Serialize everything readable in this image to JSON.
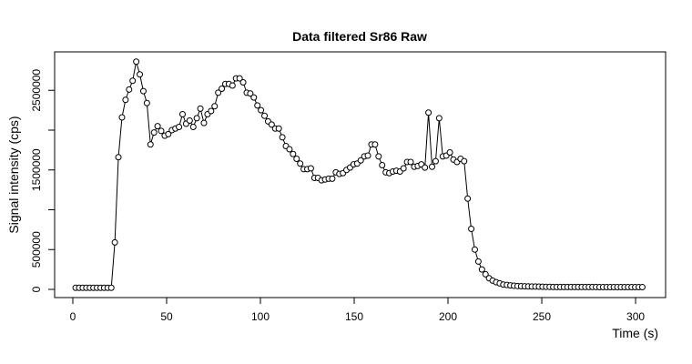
{
  "chart_data": {
    "type": "scatter-line",
    "title": "Data filtered Sr86 Raw",
    "xlabel": "Time (s)",
    "ylabel": "Signal intensity (cps)",
    "xlim": [
      -9.7,
      316
    ],
    "ylim": [
      -103000,
      2983000
    ],
    "xticks": [
      0,
      50,
      100,
      150,
      200,
      250,
      300
    ],
    "yticks": [
      0,
      500000,
      {
        "value": 1000000,
        "label": null
      },
      1500000,
      {
        "value": 2000000,
        "label": null
      },
      2500000
    ],
    "color": "#000000",
    "x": [
      1.5,
      3.4,
      5.3,
      7.2,
      9.1,
      11,
      12.9,
      14.8,
      16.7,
      18.6,
      20.5,
      22.4,
      24.3,
      26.2,
      28.1,
      30,
      31.9,
      33.8,
      35.7,
      37.6,
      39.5,
      41.4,
      43.3,
      45.2,
      47.1,
      49,
      50.9,
      52.8,
      54.7,
      56.6,
      58.5,
      60.4,
      62.3,
      64.2,
      66.1,
      68,
      69.9,
      71.8,
      73.7,
      75.6,
      77.5,
      79.4,
      81.3,
      83.2,
      85.1,
      87,
      88.9,
      90.8,
      92.7,
      94.6,
      96.5,
      98.4,
      100.3,
      102.2,
      104.1,
      106,
      107.9,
      109.8,
      111.7,
      113.6,
      115.5,
      117.4,
      119.3,
      121.2,
      123.1,
      125,
      126.9,
      128.8,
      130.7,
      132.6,
      134.5,
      136.4,
      138.3,
      140.2,
      142.1,
      144,
      145.9,
      147.8,
      149.7,
      151.6,
      153.5,
      155.4,
      157.3,
      159.2,
      161.1,
      163,
      164.9,
      166.8,
      168.7,
      170.6,
      172.5,
      174.4,
      176.3,
      178.2,
      180.1,
      182,
      183.9,
      185.8,
      187.7,
      189.6,
      191.5,
      193.4,
      195.3,
      197.2,
      199.1,
      201,
      202.9,
      204.8,
      206.7,
      208.6,
      210.5,
      212.4,
      214.3,
      216.2,
      218.1,
      220,
      221.9,
      223.8,
      225.7,
      227.6,
      229.5,
      231.4,
      233.3,
      235.2,
      237.1,
      239,
      240.9,
      242.8,
      244.7,
      246.6,
      248.5,
      250.4,
      252.3,
      254.2,
      256.1,
      258,
      259.9,
      261.8,
      263.7,
      265.6,
      267.5,
      269.4,
      271.3,
      273.2,
      275.1,
      277,
      278.9,
      280.8,
      282.7,
      284.6,
      286.5,
      288.4,
      290.3,
      292.2,
      294.1,
      296,
      297.9,
      299.8,
      301.7,
      303.6
    ],
    "values": [
      20000,
      20000,
      20000,
      20000,
      20000,
      20000,
      20000,
      20000,
      20000,
      20000,
      20000,
      590000,
      1660000,
      2160000,
      2380000,
      2510000,
      2620000,
      2860000,
      2700000,
      2490000,
      2340000,
      1820000,
      1970000,
      2050000,
      1990000,
      1930000,
      1950000,
      2000000,
      2020000,
      2040000,
      2200000,
      2080000,
      2120000,
      2040000,
      2150000,
      2270000,
      2090000,
      2200000,
      2240000,
      2300000,
      2470000,
      2520000,
      2580000,
      2580000,
      2560000,
      2650000,
      2650000,
      2600000,
      2470000,
      2460000,
      2410000,
      2310000,
      2250000,
      2180000,
      2110000,
      2070000,
      2020000,
      2020000,
      1910000,
      1800000,
      1760000,
      1700000,
      1640000,
      1580000,
      1510000,
      1510000,
      1520000,
      1400000,
      1400000,
      1370000,
      1380000,
      1390000,
      1390000,
      1470000,
      1450000,
      1460000,
      1500000,
      1530000,
      1570000,
      1580000,
      1620000,
      1670000,
      1680000,
      1820000,
      1820000,
      1670000,
      1560000,
      1470000,
      1460000,
      1480000,
      1490000,
      1480000,
      1520000,
      1600000,
      1600000,
      1540000,
      1550000,
      1570000,
      1530000,
      2220000,
      1540000,
      1610000,
      2150000,
      1670000,
      1680000,
      1720000,
      1630000,
      1600000,
      1640000,
      1610000,
      1140000,
      760000,
      500000,
      350000,
      250000,
      190000,
      140000,
      110000,
      90000,
      75000,
      60000,
      55000,
      50000,
      45000,
      42000,
      40000,
      38000,
      37000,
      36000,
      35000,
      34000,
      33000,
      32000,
      31000,
      30000,
      30000,
      30000,
      30000,
      30000,
      30000,
      30000,
      30000,
      30000,
      30000,
      30000,
      30000,
      30000,
      28000,
      28000,
      28000,
      28000,
      28000,
      28000,
      28000,
      28000,
      28000,
      28000,
      28000,
      28000,
      28000
    ]
  }
}
